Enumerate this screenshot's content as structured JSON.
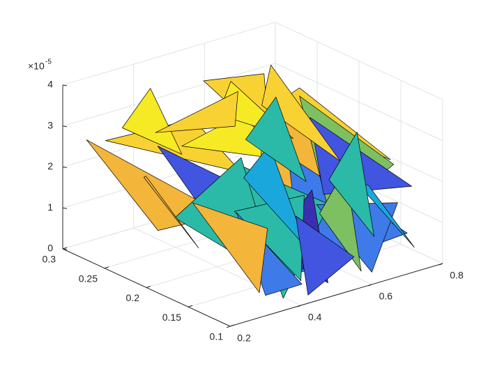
{
  "chart_data": {
    "type": "trisurf",
    "xlim": [
      0.2,
      0.8
    ],
    "xticks": [
      0.2,
      0.4,
      0.6,
      0.8
    ],
    "ylim": [
      0.1,
      0.3
    ],
    "yticks": [
      0.1,
      0.15,
      0.2,
      0.25,
      0.3
    ],
    "zlim": [
      0,
      4e-05
    ],
    "zticks": [
      {
        "value": 0,
        "label": "0"
      },
      {
        "value": 1e-05,
        "label": "1"
      },
      {
        "value": 2e-05,
        "label": "2"
      },
      {
        "value": 3e-05,
        "label": "3"
      },
      {
        "value": 4e-05,
        "label": "4"
      }
    ],
    "z_multiplier": "×10",
    "z_exponent": "-5",
    "grid": true,
    "colormap": [
      "#3b2fb0",
      "#4155e0",
      "#3f7be8",
      "#1aa8dc",
      "#2bbaa8",
      "#7cc062",
      "#f3b63a",
      "#f8d133",
      "#f6ea24"
    ],
    "patches": [
      {
        "x": [
          0.25,
          0.45,
          0.35
        ],
        "y": [
          0.27,
          0.25,
          0.15
        ],
        "z": [
          2.8e-05,
          3e-05,
          2.9e-05
        ],
        "c": 0.9
      },
      {
        "x": [
          0.3,
          0.6,
          0.5
        ],
        "y": [
          0.2,
          0.22,
          0.12
        ],
        "z": [
          3.2e-05,
          3.4e-05,
          3e-05
        ],
        "c": 0.95
      },
      {
        "x": [
          0.4,
          0.7,
          0.65
        ],
        "y": [
          0.15,
          0.12,
          0.25
        ],
        "z": [
          2e-05,
          2.5e-05,
          3.3e-05
        ],
        "c": 0.7
      },
      {
        "x": [
          0.3,
          0.35,
          0.5
        ],
        "y": [
          0.12,
          0.25,
          0.1
        ],
        "z": [
          8e-06,
          2.6e-05,
          1.5e-05
        ],
        "c": 0.1
      },
      {
        "x": [
          0.45,
          0.7,
          0.6
        ],
        "y": [
          0.12,
          0.1,
          0.2
        ],
        "z": [
          5e-06,
          1e-05,
          2.2e-05
        ],
        "c": 0.2
      },
      {
        "x": [
          0.22,
          0.3,
          0.28
        ],
        "y": [
          0.28,
          0.15,
          0.22
        ],
        "z": [
          2.8e-05,
          2e-05,
          1e-05
        ],
        "c": 0.75
      },
      {
        "x": [
          0.55,
          0.75,
          0.7
        ],
        "y": [
          0.2,
          0.25,
          0.12
        ],
        "z": [
          3.5e-05,
          3e-05,
          2.6e-05
        ],
        "c": 0.9
      },
      {
        "x": [
          0.35,
          0.55,
          0.45
        ],
        "y": [
          0.1,
          0.13,
          0.2
        ],
        "z": [
          3e-06,
          1.8e-05,
          2.4e-05
        ],
        "c": 0.45
      },
      {
        "x": [
          0.6,
          0.78,
          0.75
        ],
        "y": [
          0.15,
          0.15,
          0.25
        ],
        "z": [
          1.2e-05,
          2e-05,
          2.8e-05
        ],
        "c": 0.6
      },
      {
        "x": [
          0.25,
          0.4,
          0.3
        ],
        "y": [
          0.25,
          0.28,
          0.2
        ],
        "z": [
          3.3e-05,
          3.6e-05,
          3e-05
        ],
        "c": 0.95
      },
      {
        "x": [
          0.4,
          0.5,
          0.62
        ],
        "y": [
          0.14,
          0.11,
          0.18
        ],
        "z": [
          1e-05,
          2e-06,
          1.5e-05
        ],
        "c": 0.05
      },
      {
        "x": [
          0.5,
          0.65,
          0.55
        ],
        "y": [
          0.18,
          0.25,
          0.28
        ],
        "z": [
          3e-05,
          3.6e-05,
          3.4e-05
        ],
        "c": 0.85
      },
      {
        "x": [
          0.28,
          0.42,
          0.38
        ],
        "y": [
          0.2,
          0.18,
          0.12
        ],
        "z": [
          1.5e-05,
          2.8e-05,
          5e-06
        ],
        "c": 0.5
      },
      {
        "x": [
          0.6,
          0.72,
          0.68
        ],
        "y": [
          0.1,
          0.12,
          0.2
        ],
        "z": [
          3e-06,
          1.5e-05,
          8e-06
        ],
        "c": 0.3
      },
      {
        "x": [
          0.33,
          0.48,
          0.4
        ],
        "y": [
          0.15,
          0.13,
          0.1
        ],
        "z": [
          2e-05,
          2.2e-05,
          6e-06
        ],
        "c": 0.55
      },
      {
        "x": [
          0.7,
          0.78,
          0.76
        ],
        "y": [
          0.2,
          0.25,
          0.12
        ],
        "z": [
          1e-05,
          2.2e-05,
          1.8e-05
        ],
        "c": 0.15
      },
      {
        "x": [
          0.45,
          0.58,
          0.52
        ],
        "y": [
          0.22,
          0.26,
          0.16
        ],
        "z": [
          3.4e-05,
          3.5e-05,
          3.2e-05
        ],
        "c": 1
      },
      {
        "x": [
          0.3,
          0.45,
          0.36
        ],
        "y": [
          0.1,
          0.12,
          0.16
        ],
        "z": [
          5e-06,
          2e-06,
          1.8e-05
        ],
        "c": 0.25
      },
      {
        "x": [
          0.5,
          0.62,
          0.57
        ],
        "y": [
          0.12,
          0.14,
          0.1
        ],
        "z": [
          1.8e-05,
          2.4e-05,
          4e-06
        ],
        "c": 0.65
      },
      {
        "x": [
          0.24,
          0.34,
          0.3
        ],
        "y": [
          0.22,
          0.26,
          0.18
        ],
        "z": [
          2.4e-05,
          1.8e-05,
          9e-06
        ],
        "c": 0.8
      },
      {
        "x": [
          0.62,
          0.74,
          0.7
        ],
        "y": [
          0.24,
          0.28,
          0.18
        ],
        "z": [
          3e-05,
          3.3e-05,
          2e-05
        ],
        "c": 0.88
      },
      {
        "x": [
          0.38,
          0.5,
          0.44
        ],
        "y": [
          0.16,
          0.18,
          0.11
        ],
        "z": [
          2.6e-05,
          2.9e-05,
          1.2e-05
        ],
        "c": 0.4
      },
      {
        "x": [
          0.65,
          0.78,
          0.72
        ],
        "y": [
          0.14,
          0.18,
          0.1
        ],
        "z": [
          2e-05,
          1.2e-05,
          6e-06
        ],
        "c": 0.35
      },
      {
        "x": [
          0.32,
          0.6,
          0.45
        ],
        "y": [
          0.24,
          0.26,
          0.2
        ],
        "z": [
          3.1e-05,
          3.2e-05,
          3.3e-05
        ],
        "c": 0.92
      },
      {
        "x": [
          0.42,
          0.55,
          0.48
        ],
        "y": [
          0.1,
          0.1,
          0.14
        ],
        "z": [
          2e-06,
          8e-06,
          1.6e-05
        ],
        "c": 0.1
      },
      {
        "x": [
          0.55,
          0.7,
          0.63
        ],
        "y": [
          0.13,
          0.16,
          0.11
        ],
        "z": [
          2.4e-05,
          2.9e-05,
          1e-05
        ],
        "c": 0.55
      },
      {
        "x": [
          0.26,
          0.4,
          0.33
        ],
        "y": [
          0.17,
          0.14,
          0.12
        ],
        "z": [
          2.2e-05,
          1.5e-05,
          3e-06
        ],
        "c": 0.7
      },
      {
        "x": [
          0.48,
          0.66,
          0.58
        ],
        "y": [
          0.2,
          0.24,
          0.17
        ],
        "z": [
          2.9e-05,
          3.1e-05,
          1.9e-05
        ],
        "c": 0.5
      }
    ]
  }
}
